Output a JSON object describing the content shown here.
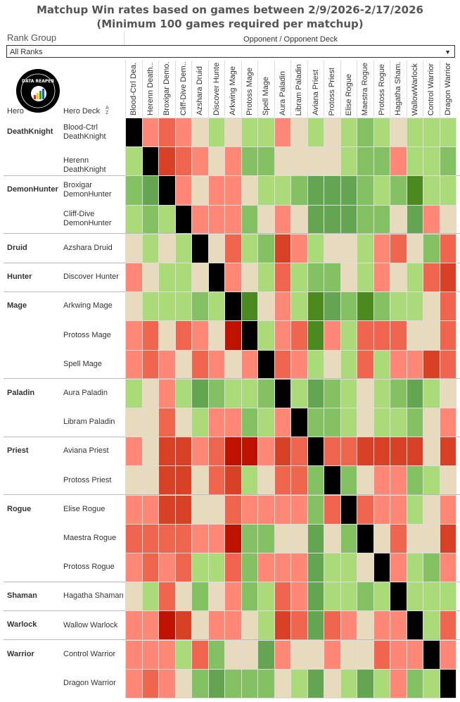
{
  "title": [
    "Matchup Win rates based on games between 2/9/2026-2/17/2026",
    "(Minimum 100 games required per matchup)"
  ],
  "filter": {
    "label": "Rank Group",
    "value": "All Ranks"
  },
  "logo_text": "DATA REAPER REPORT",
  "headers": {
    "hero": "Hero",
    "deck": "Hero Deck",
    "opponent": "Opponent / Opponent Deck",
    "sort": "A Z"
  },
  "colors": {
    "-4": "#be1100",
    "-3": "#d94126",
    "-2": "#f0654e",
    "-1": "#ff8775",
    "0": "#e8dabd",
    "1": "#abdb79",
    "2": "#84c162",
    "3": "#63a550",
    "4": "#4a8a1e",
    "mirror": "#000000"
  },
  "chart_data": {
    "type": "heatmap",
    "title": "Matchup Win rates based on games between 2/9/2026-2/17/2026 (Minimum 100 games required per matchup)",
    "value_scale": "categorical color level: -4 (strongly unfavored, dark red) .. 0 (even, beige) .. 4 (strongly favored, dark green); null = mirror (black)",
    "columns": [
      "Blood-Ctrl Dea...",
      "Herenn Death...",
      "Broxigar Demo...",
      "Cliff-Dive Dem...",
      "Azshara Druid",
      "Discover Hunter",
      "Arkwing Mage",
      "Protoss Mage",
      "Spell Mage",
      "Aura Paladin",
      "Libram Paladin",
      "Aviana Priest",
      "Protoss Priest",
      "Elise Rogue",
      "Maestra Rogue",
      "Protoss Rogue",
      "Hagatha Sham...",
      "WallowWarlock",
      "Control Warrior",
      "Dragon Warrior"
    ],
    "groups": [
      {
        "hero": "DeathKnight",
        "decks": [
          "Blood-Ctrl DeathKnight",
          "Herenn DeathKnight"
        ]
      },
      {
        "hero": "DemonHunter",
        "decks": [
          "Broxigar DemonHunter",
          "Cliff-Dive DemonHunter"
        ]
      },
      {
        "hero": "Druid",
        "decks": [
          "Azshara Druid"
        ]
      },
      {
        "hero": "Hunter",
        "decks": [
          "Discover Hunter"
        ]
      },
      {
        "hero": "Mage",
        "decks": [
          "Arkwing Mage",
          "Protoss Mage",
          "Spell Mage"
        ]
      },
      {
        "hero": "Paladin",
        "decks": [
          "Aura Paladin",
          "Libram Paladin"
        ]
      },
      {
        "hero": "Priest",
        "decks": [
          "Aviana Priest",
          "Protoss Priest"
        ]
      },
      {
        "hero": "Rogue",
        "decks": [
          "Elise Rogue",
          "Maestra Rogue",
          "Protoss Rogue"
        ]
      },
      {
        "hero": "Shaman",
        "decks": [
          "Hagatha Shaman"
        ]
      },
      {
        "hero": "Warlock",
        "decks": [
          "Wallow Warlock"
        ]
      },
      {
        "hero": "Warrior",
        "decks": [
          "Control Warrior",
          "Dragon Warrior"
        ]
      }
    ],
    "matrix": [
      [
        null,
        -1,
        -2,
        -1,
        0,
        1,
        0,
        1,
        1,
        -1,
        0,
        1,
        0,
        1,
        2,
        1,
        0,
        1,
        1,
        1
      ],
      [
        1,
        null,
        -3,
        -2,
        -1,
        0,
        -1,
        2,
        2,
        0,
        0,
        0,
        0,
        1,
        2,
        2,
        -1,
        1,
        1,
        2
      ],
      [
        2,
        3,
        null,
        -1,
        0,
        -1,
        -1,
        0,
        1,
        1,
        2,
        3,
        3,
        3,
        2,
        1,
        2,
        4,
        1,
        1
      ],
      [
        1,
        2,
        1,
        null,
        -1,
        -1,
        -1,
        2,
        0,
        -1,
        0,
        3,
        3,
        3,
        2,
        2,
        0,
        3,
        -1,
        0
      ],
      [
        0,
        1,
        0,
        1,
        null,
        0,
        -2,
        1,
        2,
        -3,
        -1,
        1,
        0,
        0,
        1,
        -1,
        -2,
        0,
        2,
        -2
      ],
      [
        -1,
        0,
        1,
        1,
        0,
        null,
        -1,
        0,
        1,
        -2,
        1,
        2,
        2,
        0,
        1,
        -1,
        0,
        1,
        -2,
        -3
      ],
      [
        0,
        1,
        1,
        1,
        2,
        1,
        null,
        4,
        0,
        -1,
        1,
        4,
        3,
        2,
        4,
        2,
        1,
        1,
        0,
        -2
      ],
      [
        -1,
        -2,
        0,
        -2,
        -1,
        0,
        -4,
        null,
        1,
        -1,
        -2,
        4,
        -1,
        1,
        -2,
        -2,
        -2,
        0,
        0,
        -2
      ],
      [
        -1,
        -2,
        -1,
        0,
        -2,
        -1,
        0,
        -1,
        null,
        -2,
        -1,
        1,
        0,
        1,
        -2,
        1,
        -1,
        -1,
        -3,
        -2
      ],
      [
        1,
        0,
        -1,
        1,
        3,
        2,
        1,
        1,
        2,
        null,
        1,
        3,
        2,
        1,
        0,
        1,
        2,
        3,
        1,
        0
      ],
      [
        0,
        0,
        -2,
        0,
        1,
        -1,
        -1,
        2,
        1,
        -1,
        null,
        2,
        2,
        1,
        0,
        1,
        1,
        2,
        0,
        -1
      ],
      [
        -1,
        0,
        -3,
        -3,
        -1,
        -2,
        -4,
        -4,
        -1,
        -3,
        -2,
        null,
        -2,
        -2,
        -3,
        -3,
        -3,
        -3,
        0,
        -3
      ],
      [
        0,
        0,
        -3,
        -3,
        0,
        -2,
        -3,
        1,
        0,
        -2,
        -2,
        2,
        null,
        2,
        0,
        -1,
        -1,
        2,
        1,
        0
      ],
      [
        -1,
        -1,
        -3,
        -3,
        0,
        0,
        -2,
        -1,
        -1,
        -1,
        -1,
        2,
        -2,
        null,
        -2,
        -1,
        -1,
        1,
        0,
        -1
      ],
      [
        -2,
        -2,
        -2,
        -2,
        -1,
        -1,
        -4,
        2,
        2,
        0,
        0,
        3,
        0,
        2,
        null,
        0,
        -2,
        0,
        0,
        -3
      ],
      [
        -1,
        -2,
        -1,
        -2,
        1,
        1,
        -2,
        2,
        -1,
        -1,
        -1,
        3,
        1,
        1,
        0,
        null,
        -1,
        1,
        2,
        -1
      ],
      [
        0,
        1,
        -2,
        0,
        2,
        0,
        -1,
        2,
        1,
        -2,
        -1,
        3,
        1,
        1,
        2,
        1,
        null,
        1,
        1,
        1
      ],
      [
        -1,
        -1,
        -4,
        -3,
        0,
        -1,
        -1,
        0,
        1,
        -3,
        -2,
        3,
        -2,
        -1,
        0,
        -1,
        -1,
        null,
        1,
        -2
      ],
      [
        -1,
        -1,
        -1,
        1,
        -2,
        2,
        0,
        0,
        3,
        -1,
        0,
        0,
        -1,
        0,
        0,
        -2,
        -1,
        -1,
        null,
        -1
      ],
      [
        -1,
        -2,
        -1,
        0,
        2,
        3,
        2,
        2,
        2,
        0,
        1,
        3,
        0,
        1,
        3,
        1,
        -1,
        2,
        1,
        null
      ]
    ]
  }
}
